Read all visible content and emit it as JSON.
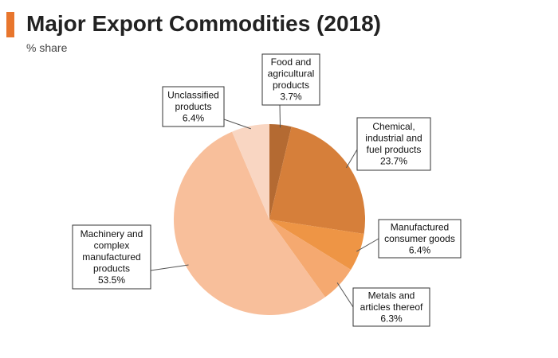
{
  "header": {
    "title": "Major Export Commodities (2018)",
    "subtitle": "% share"
  },
  "chart_data": {
    "type": "pie",
    "title": "Major Export Commodities (2018)",
    "subtitle": "% share",
    "unit": "%",
    "slices": [
      {
        "lines": [
          "Food and",
          "agricultural",
          "products"
        ],
        "value": 3.7,
        "value_label": "3.7%",
        "color": "#b46a32"
      },
      {
        "lines": [
          "Chemical,",
          "industrial and",
          "fuel products"
        ],
        "value": 23.7,
        "value_label": "23.7%",
        "color": "#d67f3a"
      },
      {
        "lines": [
          "Manufactured",
          "consumer goods"
        ],
        "value": 6.4,
        "value_label": "6.4%",
        "color": "#ee9545"
      },
      {
        "lines": [
          "Metals and",
          "articles thereof"
        ],
        "value": 6.3,
        "value_label": "6.3%",
        "color": "#f5a970"
      },
      {
        "lines": [
          "Machinery and",
          "complex",
          "manufactured",
          "products"
        ],
        "value": 53.5,
        "value_label": "53.5%",
        "color": "#f8bf9b"
      },
      {
        "lines": [
          "Unclassified",
          "products"
        ],
        "value": 6.4,
        "value_label": "6.4%",
        "color": "#f9d6c2"
      }
    ]
  }
}
